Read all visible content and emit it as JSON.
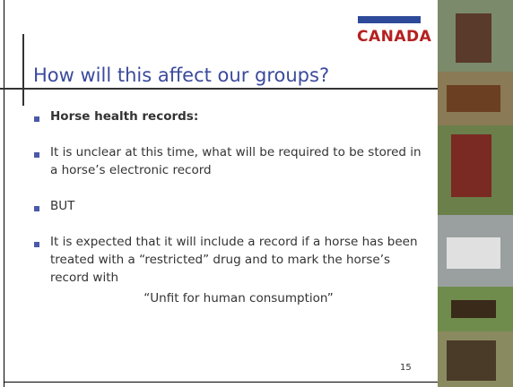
{
  "logo": "CANADA",
  "title": "How will this affect our groups?",
  "bullets": [
    "Horse health records:",
    "It is unclear at this time, what will be required to be stored in a horse’s electronic record",
    "BUT",
    "It is expected that it will include a record if a horse has been treated with a “restricted” drug and to mark the horse’s record with"
  ],
  "quote": "“Unfit for human consumption”",
  "page_number": "15"
}
